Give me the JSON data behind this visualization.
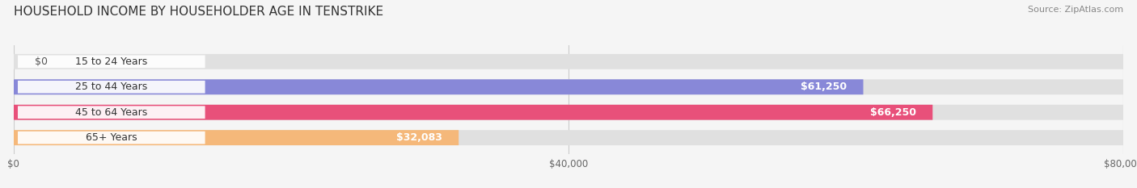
{
  "title": "HOUSEHOLD INCOME BY HOUSEHOLDER AGE IN TENSTRIKE",
  "source": "Source: ZipAtlas.com",
  "categories": [
    "15 to 24 Years",
    "25 to 44 Years",
    "45 to 64 Years",
    "65+ Years"
  ],
  "values": [
    0,
    61250,
    66250,
    32083
  ],
  "bar_colors": [
    "#5ecece",
    "#8888d8",
    "#e8507a",
    "#f5b87a"
  ],
  "bar_bg_color": "#e0e0e0",
  "background_color": "#f5f5f5",
  "xlim": [
    0,
    80000
  ],
  "xticks": [
    0,
    40000,
    80000
  ],
  "xtick_labels": [
    "$0",
    "$40,000",
    "$80,000"
  ],
  "value_labels": [
    "$0",
    "$61,250",
    "$66,250",
    "$32,083"
  ],
  "title_fontsize": 11,
  "source_fontsize": 8,
  "label_fontsize": 9,
  "tick_fontsize": 8.5,
  "bar_height": 0.6
}
